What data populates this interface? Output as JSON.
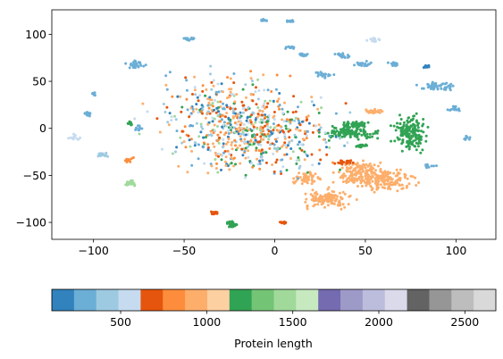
{
  "chart_data": {
    "type": "scatter",
    "title": "",
    "xlabel": "",
    "ylabel": "",
    "xlim": [
      -123,
      122
    ],
    "ylim": [
      -118,
      126
    ],
    "xticks": [
      -100,
      -50,
      0,
      50,
      100
    ],
    "yticks": [
      100,
      50,
      0,
      -50,
      -100
    ],
    "xtick_labels": [
      "−100",
      "−50",
      "0",
      "50",
      "100"
    ],
    "ytick_labels": [
      "100",
      "50",
      "0",
      "−50",
      "−100"
    ],
    "colormap": "tab20c",
    "colorbar": {
      "label": "Protein length",
      "vmin": 100,
      "vmax": 2680,
      "ticks": [
        500,
        1000,
        1500,
        2000,
        2500
      ],
      "tick_labels": [
        "500",
        "1000",
        "1500",
        "2000",
        "2500"
      ],
      "colors": [
        "#3182bd",
        "#6baed6",
        "#9ecae1",
        "#c6dbef",
        "#e6550d",
        "#fd8d3c",
        "#fdae6b",
        "#fdd0a2",
        "#31a354",
        "#74c476",
        "#a1d99b",
        "#c7e9c0",
        "#756bb1",
        "#9e9ac8",
        "#bcbddc",
        "#dadaeb",
        "#636363",
        "#969696",
        "#bdbdbd",
        "#d9d9d9"
      ]
    },
    "clusters": [
      {
        "x": 75,
        "y": -5,
        "spread": [
          6,
          12
        ],
        "n": 160,
        "length": 1250
      },
      {
        "x": 42,
        "y": -5,
        "spread": [
          10,
          4
        ],
        "n": 120,
        "length": 1250
      },
      {
        "x": 43,
        "y": 4,
        "spread": [
          5,
          2
        ],
        "n": 50,
        "length": 1250
      },
      {
        "x": 47,
        "y": -19,
        "spread": [
          3,
          1.5
        ],
        "n": 18,
        "length": 1250
      },
      {
        "x": 62,
        "y": -55,
        "spread": [
          10,
          8
        ],
        "n": 140,
        "length": 1000
      },
      {
        "x": 48,
        "y": -48,
        "spread": [
          9,
          10
        ],
        "n": 150,
        "length": 1000
      },
      {
        "x": 29,
        "y": -75,
        "spread": [
          9,
          6
        ],
        "n": 130,
        "length": 1000
      },
      {
        "x": 18,
        "y": -53,
        "spread": [
          5,
          4
        ],
        "n": 60,
        "length": 1000
      },
      {
        "x": 55,
        "y": 18,
        "spread": [
          3,
          1.5
        ],
        "n": 25,
        "length": 1000
      },
      {
        "x": 90,
        "y": 45,
        "spread": [
          7,
          3
        ],
        "n": 45,
        "length": 300
      },
      {
        "x": 66,
        "y": 68,
        "spread": [
          2,
          1.5
        ],
        "n": 15,
        "length": 300
      },
      {
        "x": 48,
        "y": 68,
        "spread": [
          4,
          2
        ],
        "n": 25,
        "length": 300
      },
      {
        "x": 37,
        "y": 77,
        "spread": [
          3,
          2
        ],
        "n": 20,
        "length": 300
      },
      {
        "x": 54,
        "y": 94,
        "spread": [
          2.5,
          1.5
        ],
        "n": 15,
        "length": 500
      },
      {
        "x": -77,
        "y": 68,
        "spread": [
          3,
          3
        ],
        "n": 30,
        "length": 300
      },
      {
        "x": -100,
        "y": 37,
        "spread": [
          1,
          2
        ],
        "n": 12,
        "length": 300
      },
      {
        "x": -103,
        "y": 15,
        "spread": [
          2,
          2
        ],
        "n": 14,
        "length": 300
      },
      {
        "x": -110,
        "y": -10,
        "spread": [
          2,
          2
        ],
        "n": 14,
        "length": 500
      },
      {
        "x": -95,
        "y": -28,
        "spread": [
          2,
          1.5
        ],
        "n": 14,
        "length": 400
      },
      {
        "x": -80,
        "y": -33,
        "spread": [
          2,
          2
        ],
        "n": 12,
        "length": 850
      },
      {
        "x": -80,
        "y": -58,
        "spread": [
          2.5,
          2
        ],
        "n": 25,
        "length": 1400
      },
      {
        "x": -24,
        "y": -102,
        "spread": [
          2,
          3
        ],
        "n": 35,
        "length": 1250
      },
      {
        "x": -33,
        "y": -90,
        "spread": [
          1.5,
          1
        ],
        "n": 12,
        "length": 700
      },
      {
        "x": 5,
        "y": -100,
        "spread": [
          1.5,
          1
        ],
        "n": 10,
        "length": 700
      },
      {
        "x": 38,
        "y": -36,
        "spread": [
          4,
          2
        ],
        "n": 20,
        "length": 700
      },
      {
        "x": 27,
        "y": 57,
        "spread": [
          3,
          2
        ],
        "n": 20,
        "length": 300
      },
      {
        "x": -6,
        "y": 115,
        "spread": [
          2,
          1
        ],
        "n": 12,
        "length": 300
      },
      {
        "x": 8,
        "y": 114,
        "spread": [
          2,
          1
        ],
        "n": 12,
        "length": 300
      },
      {
        "x": -47,
        "y": 95,
        "spread": [
          3,
          1
        ],
        "n": 15,
        "length": 300
      },
      {
        "x": 106,
        "y": -10,
        "spread": [
          1.5,
          2
        ],
        "n": 10,
        "length": 300
      },
      {
        "x": 100,
        "y": 21,
        "spread": [
          3,
          2
        ],
        "n": 14,
        "length": 300
      },
      {
        "x": 85,
        "y": -40,
        "spread": [
          3,
          1.5
        ],
        "n": 12,
        "length": 300
      },
      {
        "x": 84,
        "y": 66,
        "spread": [
          1.5,
          1
        ],
        "n": 10,
        "length": 200
      },
      {
        "x": 8,
        "y": 86,
        "spread": [
          2,
          1
        ],
        "n": 10,
        "length": 300
      },
      {
        "x": 15,
        "y": 78,
        "spread": [
          2,
          2
        ],
        "n": 12,
        "length": 300
      },
      {
        "x": -75,
        "y": 1,
        "spread": [
          1.5,
          3
        ],
        "n": 10,
        "length": 300
      },
      {
        "x": -80,
        "y": 5,
        "spread": [
          1,
          1.5
        ],
        "n": 8,
        "length": 1250
      },
      {
        "x": -10,
        "y": -8,
        "spread": [
          28,
          28
        ],
        "n": 480,
        "length": 900
      },
      {
        "x": -25,
        "y": 20,
        "spread": [
          30,
          26
        ],
        "n": 260,
        "length": 300
      }
    ]
  }
}
